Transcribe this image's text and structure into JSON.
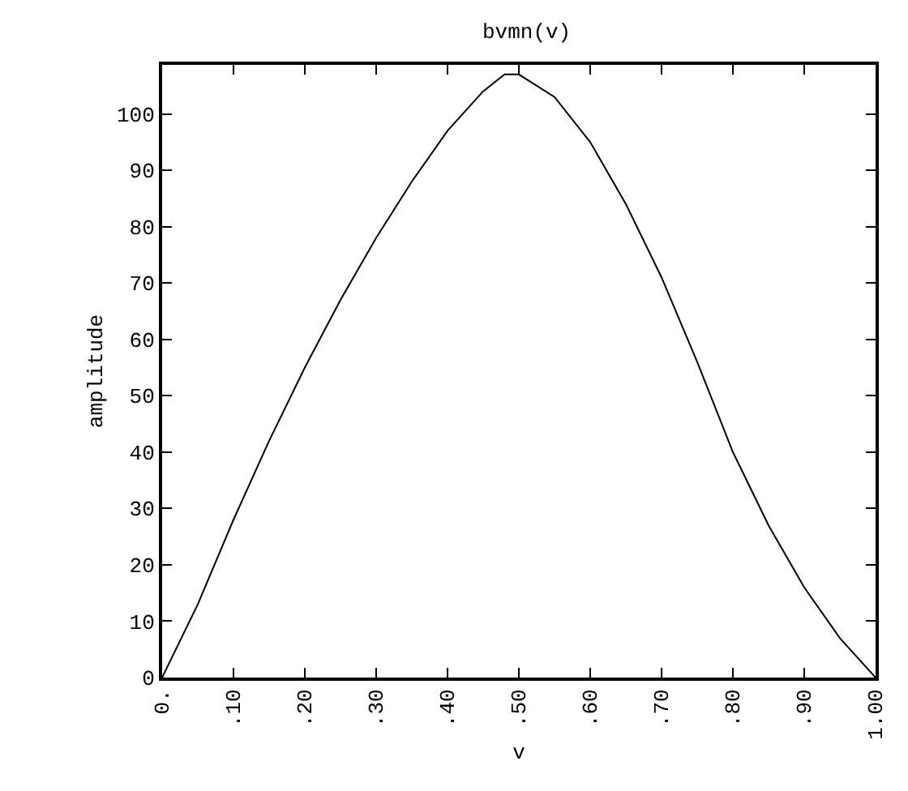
{
  "chart_data": {
    "type": "line",
    "title": "bvmn(v)",
    "xlabel": "v",
    "ylabel": "amplitude",
    "x": [
      0,
      0.05,
      0.1,
      0.15,
      0.2,
      0.25,
      0.3,
      0.35,
      0.4,
      0.45,
      0.48,
      0.5,
      0.55,
      0.6,
      0.65,
      0.7,
      0.75,
      0.8,
      0.85,
      0.9,
      0.95,
      1.0
    ],
    "series": [
      {
        "color": "#000000",
        "values": [
          0,
          13,
          28,
          42,
          55,
          67,
          78,
          88,
          97,
          104,
          107,
          107,
          103,
          95,
          84,
          71,
          56,
          40,
          27,
          16,
          7,
          0
        ]
      }
    ],
    "xlim": [
      0,
      1
    ],
    "xticks": [
      {
        "value": 0,
        "label": "0."
      },
      {
        "value": 0.1,
        "label": ".10"
      },
      {
        "value": 0.2,
        "label": ".20"
      },
      {
        "value": 0.3,
        "label": ".30"
      },
      {
        "value": 0.4,
        "label": ".40"
      },
      {
        "value": 0.5,
        "label": ".50"
      },
      {
        "value": 0.6,
        "label": ".60"
      },
      {
        "value": 0.7,
        "label": ".70"
      },
      {
        "value": 0.8,
        "label": ".80"
      },
      {
        "value": 0.9,
        "label": ".90"
      },
      {
        "value": 1,
        "label": "1.00"
      }
    ],
    "ylim": [
      0,
      108.7
    ],
    "yticks": [
      0,
      10,
      20,
      30,
      40,
      50,
      60,
      70,
      80,
      90,
      100
    ],
    "marker": "none",
    "line_style": "solid"
  }
}
